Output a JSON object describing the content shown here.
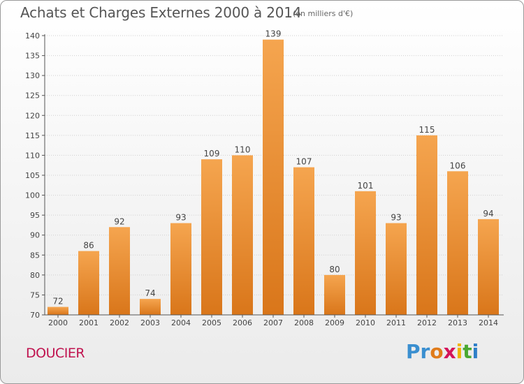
{
  "header": {
    "title": "Achats et Charges Externes 2000 à 2014",
    "subtitle": "(en milliers d'€)"
  },
  "footer": {
    "commune": "DOUCIER",
    "logo_letters": [
      "P",
      "r",
      "o",
      "x",
      "i",
      "t",
      "i"
    ],
    "logo_colors": [
      "#3a8fd0",
      "#3a8fd0",
      "#e07b1a",
      "#d4145a",
      "#f0b400",
      "#4aa832",
      "#2f7fc8"
    ]
  },
  "chart_data": {
    "type": "bar",
    "categories": [
      "2000",
      "2001",
      "2002",
      "2003",
      "2004",
      "2005",
      "2006",
      "2007",
      "2008",
      "2009",
      "2010",
      "2011",
      "2012",
      "2013",
      "2014"
    ],
    "values": [
      72,
      86,
      92,
      74,
      93,
      109,
      110,
      139,
      107,
      80,
      101,
      93,
      115,
      106,
      94
    ],
    "ylim": [
      70,
      140
    ],
    "yticks": [
      70,
      75,
      80,
      85,
      90,
      95,
      100,
      105,
      110,
      115,
      120,
      125,
      130,
      135,
      140
    ],
    "grid": true,
    "bar_color_top": "#f5a54f",
    "bar_color_bottom": "#d9761a"
  }
}
